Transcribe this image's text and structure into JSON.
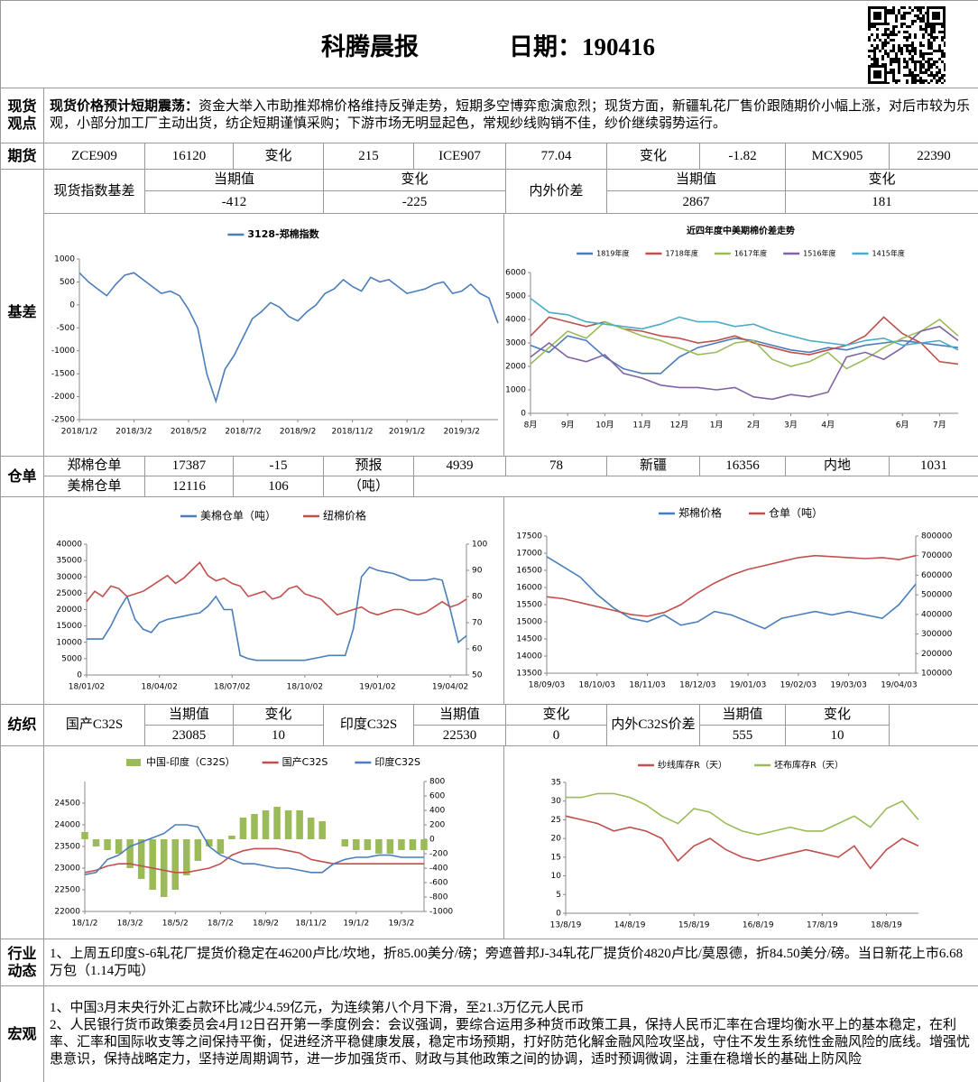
{
  "header": {
    "title": "科腾晨报",
    "date": "日期：190416"
  },
  "spot_view": {
    "label": "现货观点",
    "headline": "现货价格预计短期震荡：",
    "text": "资金大举入市助推郑棉价格维持反弹走势，短期多空博弈愈演愈烈；现货方面，新疆轧花厂售价跟随期价小幅上涨，对后市较为乐观，小部分加工厂主动出货，纺企短期谨慎采购；下游市场无明显起色，常规纱线购销不佳，纱价继续弱势运行。"
  },
  "futures": {
    "label": "期货",
    "cells": [
      "ZCE909",
      16120,
      "变化",
      215,
      "ICE907",
      77.04,
      "变化",
      -1.82,
      "MCX905",
      22390
    ]
  },
  "basis": {
    "label": "基差",
    "index_basis": {
      "name": "现货指数基差",
      "headers": [
        "当期值",
        "变化"
      ],
      "values": [
        -412,
        -225
      ]
    },
    "inner_outer": {
      "name": "内外价差",
      "headers": [
        "当期值",
        "变化"
      ],
      "values": [
        2867,
        181
      ]
    }
  },
  "warehouse": {
    "label": "仓单",
    "rows": [
      [
        "郑棉仓单",
        17387,
        -15,
        "预报",
        4939,
        78,
        "新疆",
        16356,
        "内地",
        1031
      ],
      [
        "美棉仓单",
        12116,
        106,
        "（吨）"
      ]
    ]
  },
  "textile": {
    "label": "纺织",
    "domestic": {
      "name": "国产C32S",
      "headers": [
        "当期值",
        "变化"
      ],
      "values": [
        23085,
        10
      ]
    },
    "india": {
      "name": "印度C32S",
      "headers": [
        "当期值",
        "变化"
      ],
      "values": [
        22530,
        0
      ]
    },
    "spread": {
      "name": "内外C32S价差",
      "headers": [
        "当期值",
        "变化"
      ],
      "values": [
        555,
        10
      ]
    }
  },
  "industry": {
    "label": "行业动态",
    "text": "1、上周五印度S-6轧花厂提货价稳定在46200卢比/坎地，折85.00美分/磅；旁遮普邦J-34轧花厂提货价4820卢比/莫恩德，折84.50美分/磅。当日新花上市6.68万包（1.14万吨）"
  },
  "macro": {
    "label": "宏观",
    "items": [
      "1、中国3月末央行外汇占款环比减少4.59亿元，为连续第八个月下滑，至21.3万亿元人民币",
      "2、人民银行货币政策委员会4月12日召开第一季度例会：会议强调，要综合运用多种货币政策工具，保持人民币汇率在合理均衡水平上的基本稳定，在利率、汇率和国际收支等之间保持平衡，促进经济平稳健康发展，稳定市场预期，打好防范化解金融风险攻坚战，守住不发生系统性金融风险的底线。增强忧患意识，保持战略定力，坚持逆周期调节，进一步加强货币、财政与其他政策之间的协调，适时预调微调，注重在稳增长的基础上防风险"
    ]
  },
  "chart_data": [
    {
      "type": "line",
      "categories": [
        "2018/1/2",
        null,
        null,
        null,
        null,
        null,
        "2018/3/2",
        null,
        null,
        null,
        null,
        null,
        "2018/5/2",
        null,
        null,
        null,
        null,
        null,
        "2018/7/2",
        null,
        null,
        null,
        null,
        null,
        "2018/9/2",
        null,
        null,
        null,
        null,
        null,
        "2018/11/2",
        null,
        null,
        null,
        null,
        null,
        "2019/1/2",
        null,
        null,
        null,
        null,
        null,
        "2019/3/2",
        null,
        null,
        null,
        null
      ],
      "series": [
        {
          "name": "3128-郑棉指数",
          "color": "#4a7ebb",
          "values": [
            700,
            500,
            350,
            200,
            450,
            650,
            700,
            550,
            400,
            250,
            300,
            200,
            -100,
            -500,
            -1500,
            -2100,
            -1400,
            -1100,
            -700,
            -300,
            -150,
            50,
            -50,
            -250,
            -350,
            -150,
            0,
            250,
            350,
            550,
            400,
            300,
            600,
            500,
            550,
            400,
            250,
            300,
            350,
            450,
            500,
            250,
            300,
            450,
            250,
            150,
            -400
          ]
        }
      ],
      "ylim": [
        -2500,
        1000
      ],
      "yticks": [
        -2500,
        -2000,
        -1500,
        -1000,
        -500,
        0,
        500,
        1000
      ]
    },
    {
      "type": "line",
      "title": "近四年度中美期棉价差走势",
      "categories": [
        "8月",
        null,
        "9月",
        null,
        "10月",
        null,
        "11月",
        null,
        "12月",
        null,
        "1月",
        null,
        "2月",
        null,
        "3月",
        null,
        "4月",
        null,
        null,
        null,
        "6月",
        null,
        "7月",
        null
      ],
      "series": [
        {
          "name": "1819年度",
          "color": "#4a7ebb",
          "values": [
            2900,
            2600,
            3300,
            3100,
            2400,
            1900,
            1700,
            1700,
            2400,
            2800,
            3000,
            3200,
            3100,
            2900,
            2700,
            2600,
            2800,
            2700,
            2900,
            3000,
            3100,
            3000,
            2900,
            2800
          ]
        },
        {
          "name": "1718年度",
          "color": "#c0504d",
          "values": [
            3300,
            4100,
            3900,
            3700,
            3900,
            3600,
            3500,
            3300,
            3200,
            3000,
            3100,
            3300,
            3000,
            2800,
            2600,
            2500,
            2700,
            2900,
            3300,
            4100,
            3400,
            3000,
            2200,
            2100
          ]
        },
        {
          "name": "1617年度",
          "color": "#9bbb59",
          "values": [
            2100,
            2800,
            3500,
            3200,
            3900,
            3600,
            3300,
            3100,
            2800,
            2500,
            2600,
            3000,
            3100,
            2300,
            2000,
            2200,
            2600,
            1900,
            2300,
            2800,
            3200,
            3500,
            4000,
            3300
          ]
        },
        {
          "name": "1516年度",
          "color": "#8064a2",
          "values": [
            2400,
            3000,
            2400,
            2200,
            2500,
            1700,
            1500,
            1200,
            1100,
            1100,
            1000,
            1100,
            700,
            600,
            800,
            700,
            900,
            2400,
            2600,
            2300,
            2800,
            3500,
            3700,
            3100
          ]
        },
        {
          "name": "1415年度",
          "color": "#4bacc6",
          "values": [
            4900,
            4300,
            4200,
            3900,
            3800,
            3700,
            3600,
            3800,
            4100,
            3900,
            3900,
            3700,
            3800,
            3500,
            3300,
            3100,
            3000,
            2900,
            3100,
            3200,
            2900,
            3000,
            3100,
            2700
          ]
        }
      ],
      "ylim": [
        0,
        6000
      ],
      "yticks": [
        0,
        1000,
        2000,
        3000,
        4000,
        5000,
        6000
      ]
    },
    {
      "type": "line",
      "categories": [
        "18/01/02",
        null,
        null,
        null,
        null,
        null,
        null,
        null,
        null,
        "18/04/02",
        null,
        null,
        null,
        null,
        null,
        null,
        null,
        null,
        "18/07/02",
        null,
        null,
        null,
        null,
        null,
        null,
        null,
        null,
        "18/10/02",
        null,
        null,
        null,
        null,
        null,
        null,
        null,
        null,
        "19/01/02",
        null,
        null,
        null,
        null,
        null,
        null,
        null,
        null,
        "19/04/02",
        null,
        null
      ],
      "series": [
        {
          "name": "美棉仓单（吨）",
          "color": "#4a7ebb",
          "values": [
            11000,
            11000,
            11000,
            15000,
            20000,
            24000,
            17000,
            14000,
            13000,
            16000,
            17000,
            17500,
            18000,
            18500,
            19000,
            21000,
            24000,
            20000,
            20000,
            6000,
            5000,
            4500,
            4500,
            4500,
            4500,
            4500,
            4500,
            4500,
            5000,
            5500,
            6000,
            6000,
            6000,
            14000,
            30000,
            33000,
            32000,
            31500,
            31000,
            30000,
            29000,
            29000,
            29000,
            29500,
            29000,
            20000,
            10000,
            12000
          ]
        },
        {
          "name": "纽棉价格",
          "color": "#c0504d",
          "axis": "y2",
          "values": [
            78,
            82,
            80,
            84,
            83,
            80,
            81,
            82,
            84,
            86,
            88,
            85,
            87,
            90,
            93,
            88,
            86,
            87,
            85,
            84,
            80,
            81,
            82,
            79,
            80,
            83,
            84,
            81,
            80,
            79,
            76,
            73,
            74,
            75,
            76,
            74,
            73,
            74,
            75,
            75,
            74,
            73,
            74,
            76,
            78,
            76,
            77,
            79
          ]
        }
      ],
      "ylim": [
        0,
        40000
      ],
      "yticks": [
        0,
        5000,
        10000,
        15000,
        20000,
        25000,
        30000,
        35000,
        40000
      ],
      "y2lim": [
        50,
        100
      ],
      "y2ticks": [
        50,
        60,
        70,
        80,
        90,
        100
      ]
    },
    {
      "type": "line",
      "categories": [
        "18/09/03",
        null,
        null,
        "18/10/03",
        null,
        null,
        "18/11/03",
        null,
        null,
        "18/12/03",
        null,
        null,
        "19/01/03",
        null,
        null,
        "19/02/03",
        null,
        null,
        "19/03/03",
        null,
        null,
        "19/04/03",
        null
      ],
      "series": [
        {
          "name": "郑棉价格",
          "color": "#4a7ebb",
          "values": [
            16900,
            16600,
            16300,
            15800,
            15400,
            15100,
            15000,
            15200,
            14900,
            15000,
            15300,
            15200,
            15000,
            14800,
            15100,
            15200,
            15300,
            15200,
            15300,
            15200,
            15100,
            15500,
            16100
          ]
        },
        {
          "name": "仓单（吨）",
          "color": "#c0504d",
          "axis": "y2",
          "values": [
            490000,
            480000,
            460000,
            440000,
            420000,
            400000,
            390000,
            410000,
            450000,
            510000,
            560000,
            600000,
            630000,
            650000,
            670000,
            690000,
            700000,
            695000,
            690000,
            685000,
            690000,
            680000,
            700000
          ]
        }
      ],
      "ylim": [
        13500,
        17500
      ],
      "yticks": [
        13500,
        14000,
        14500,
        15000,
        15500,
        16000,
        16500,
        17000,
        17500
      ],
      "y2lim": [
        100000,
        800000
      ],
      "y2ticks": [
        100000,
        200000,
        300000,
        400000,
        500000,
        600000,
        700000,
        800000
      ]
    },
    {
      "type": "combo",
      "categories": [
        "18/1/2",
        null,
        null,
        null,
        "18/3/2",
        null,
        null,
        null,
        "18/5/2",
        null,
        null,
        null,
        "18/7/2",
        null,
        null,
        null,
        "18/9/2",
        null,
        null,
        null,
        "18/11/2",
        null,
        null,
        null,
        "19/1/2",
        null,
        null,
        null,
        "19/3/2",
        null,
        null
      ],
      "series": [
        {
          "name": "中国-印度（C32S）",
          "color": "#9bbb59",
          "type": "bar",
          "axis": "y2",
          "values": [
            100,
            -100,
            -150,
            -200,
            -400,
            -550,
            -700,
            -800,
            -700,
            -500,
            -300,
            -100,
            -200,
            50,
            300,
            350,
            400,
            450,
            400,
            400,
            300,
            250,
            0,
            -100,
            -150,
            -150,
            -200,
            -200,
            -150,
            -150,
            -150
          ]
        },
        {
          "name": "国产C32S",
          "color": "#c0504d",
          "type": "line",
          "values": [
            22900,
            22950,
            23050,
            23100,
            23100,
            23050,
            23000,
            22950,
            22900,
            22900,
            22950,
            23000,
            23100,
            23300,
            23400,
            23450,
            23450,
            23450,
            23400,
            23350,
            23200,
            23150,
            23100,
            23100,
            23100,
            23100,
            23100,
            23100,
            23100,
            23100,
            23100
          ]
        },
        {
          "name": "印度C32S",
          "color": "#4a7ebb",
          "type": "line",
          "values": [
            22850,
            22900,
            23200,
            23300,
            23500,
            23600,
            23700,
            23800,
            24000,
            24000,
            23950,
            23500,
            23300,
            23200,
            23100,
            23100,
            23050,
            23000,
            23000,
            22950,
            22900,
            22900,
            23100,
            23200,
            23250,
            23250,
            23300,
            23300,
            23250,
            23250,
            23250
          ]
        }
      ],
      "ylim": [
        22000,
        25000
      ],
      "yticks": [
        22000,
        22500,
        23000,
        23500,
        24000,
        24500
      ],
      "y2lim": [
        -1000,
        800
      ],
      "y2ticks": [
        -1000,
        -800,
        -600,
        -400,
        -200,
        0,
        200,
        400,
        600,
        800
      ]
    },
    {
      "type": "line",
      "categories": [
        "13/8/19",
        null,
        null,
        null,
        "14/8/19",
        null,
        null,
        null,
        "15/8/19",
        null,
        null,
        null,
        "16/8/19",
        null,
        null,
        null,
        "17/8/19",
        null,
        null,
        null,
        "18/8/19",
        null,
        null
      ],
      "series": [
        {
          "name": "纱线库存R（天）",
          "color": "#c0504d",
          "values": [
            26,
            25,
            24,
            22,
            23,
            22,
            20,
            14,
            18,
            20,
            17,
            15,
            14,
            15,
            16,
            17,
            16,
            15,
            18,
            12,
            17,
            20,
            18
          ]
        },
        {
          "name": "坯布库存R（天）",
          "color": "#9bbb59",
          "values": [
            31,
            31,
            32,
            32,
            31,
            29,
            26,
            24,
            28,
            27,
            24,
            22,
            21,
            22,
            23,
            22,
            22,
            24,
            26,
            23,
            28,
            30,
            25
          ]
        }
      ],
      "ylim": [
        0,
        35
      ],
      "yticks": [
        0,
        5,
        10,
        15,
        20,
        25,
        30,
        35
      ]
    }
  ]
}
